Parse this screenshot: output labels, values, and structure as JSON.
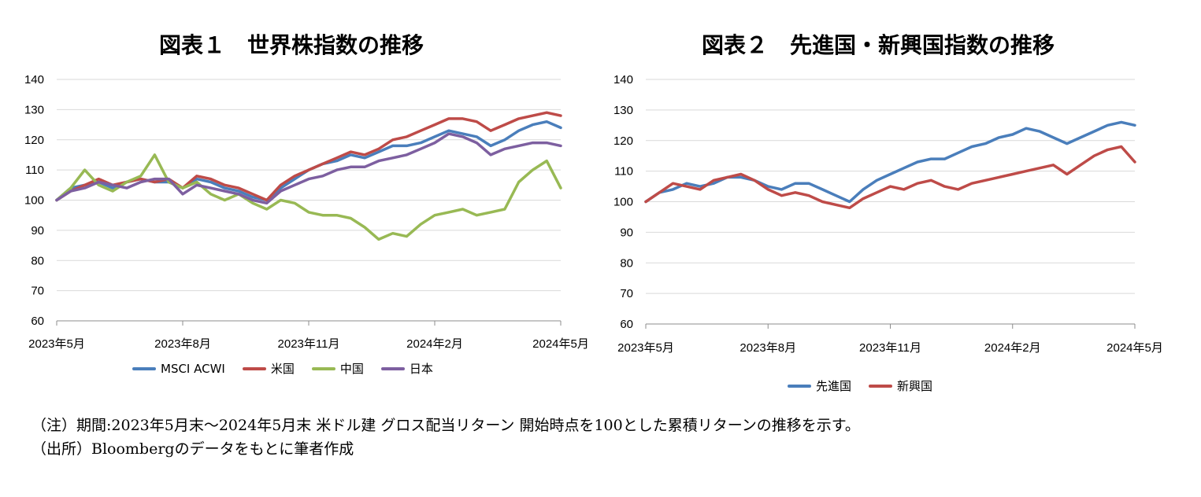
{
  "notes": {
    "line1": "（注）期間:2023年5月末～2024年5月末 米ドル建 グロス配当リターン 開始時点を100とした累積リターンの推移を示す。",
    "line2": "（出所）Bloombergのデータをもとに筆者作成"
  },
  "chart_data": [
    {
      "type": "line",
      "title": "図表１　世界株指数の推移",
      "ylim": [
        60,
        140
      ],
      "yticks": [
        "60",
        "70",
        "80",
        "90",
        "100",
        "110",
        "120",
        "130",
        "140"
      ],
      "xticks": [
        "2023年5月",
        "2023年8月",
        "2023年11月",
        "2024年2月",
        "2024年5月"
      ],
      "grid": true,
      "legend_position": "bottom",
      "series": [
        {
          "name": "MSCI ACWI",
          "color": "#4a7ebb",
          "points": [
            [
              0,
              100
            ],
            [
              3,
              104
            ],
            [
              6,
              105
            ],
            [
              9,
              106
            ],
            [
              12,
              104
            ],
            [
              15,
              106
            ],
            [
              18,
              107
            ],
            [
              21,
              106
            ],
            [
              24,
              106
            ],
            [
              27,
              104
            ],
            [
              30,
              107
            ],
            [
              33,
              106
            ],
            [
              36,
              104
            ],
            [
              39,
              103
            ],
            [
              42,
              101
            ],
            [
              45,
              100
            ],
            [
              48,
              104
            ],
            [
              51,
              107
            ],
            [
              54,
              110
            ],
            [
              57,
              112
            ],
            [
              60,
              113
            ],
            [
              63,
              115
            ],
            [
              66,
              114
            ],
            [
              69,
              116
            ],
            [
              72,
              118
            ],
            [
              75,
              118
            ],
            [
              78,
              119
            ],
            [
              81,
              121
            ],
            [
              84,
              123
            ],
            [
              87,
              122
            ],
            [
              90,
              121
            ],
            [
              93,
              118
            ],
            [
              96,
              120
            ],
            [
              99,
              123
            ],
            [
              102,
              125
            ],
            [
              105,
              126
            ],
            [
              108,
              124
            ]
          ]
        },
        {
          "name": "米国",
          "color": "#be4b48",
          "points": [
            [
              0,
              100
            ],
            [
              3,
              103
            ],
            [
              6,
              105
            ],
            [
              9,
              107
            ],
            [
              12,
              105
            ],
            [
              15,
              106
            ],
            [
              18,
              107
            ],
            [
              21,
              106
            ],
            [
              24,
              107
            ],
            [
              27,
              104
            ],
            [
              30,
              108
            ],
            [
              33,
              107
            ],
            [
              36,
              105
            ],
            [
              39,
              104
            ],
            [
              42,
              102
            ],
            [
              45,
              100
            ],
            [
              48,
              105
            ],
            [
              51,
              108
            ],
            [
              54,
              110
            ],
            [
              57,
              112
            ],
            [
              60,
              114
            ],
            [
              63,
              116
            ],
            [
              66,
              115
            ],
            [
              69,
              117
            ],
            [
              72,
              120
            ],
            [
              75,
              121
            ],
            [
              78,
              123
            ],
            [
              81,
              125
            ],
            [
              84,
              127
            ],
            [
              87,
              127
            ],
            [
              90,
              126
            ],
            [
              93,
              123
            ],
            [
              96,
              125
            ],
            [
              99,
              127
            ],
            [
              102,
              128
            ],
            [
              105,
              129
            ],
            [
              108,
              128
            ]
          ]
        },
        {
          "name": "中国",
          "color": "#98b954",
          "points": [
            [
              0,
              100
            ],
            [
              3,
              104
            ],
            [
              6,
              110
            ],
            [
              9,
              105
            ],
            [
              12,
              103
            ],
            [
              15,
              106
            ],
            [
              18,
              108
            ],
            [
              21,
              115
            ],
            [
              24,
              106
            ],
            [
              27,
              104
            ],
            [
              30,
              106
            ],
            [
              33,
              102
            ],
            [
              36,
              100
            ],
            [
              39,
              102
            ],
            [
              42,
              99
            ],
            [
              45,
              97
            ],
            [
              48,
              100
            ],
            [
              51,
              99
            ],
            [
              54,
              96
            ],
            [
              57,
              95
            ],
            [
              60,
              95
            ],
            [
              63,
              94
            ],
            [
              66,
              91
            ],
            [
              69,
              87
            ],
            [
              72,
              89
            ],
            [
              75,
              88
            ],
            [
              78,
              92
            ],
            [
              81,
              95
            ],
            [
              84,
              96
            ],
            [
              87,
              97
            ],
            [
              90,
              95
            ],
            [
              93,
              96
            ],
            [
              96,
              97
            ],
            [
              99,
              106
            ],
            [
              102,
              110
            ],
            [
              105,
              113
            ],
            [
              108,
              104
            ]
          ]
        },
        {
          "name": "日本",
          "color": "#7d5fa0",
          "points": [
            [
              0,
              100
            ],
            [
              3,
              103
            ],
            [
              6,
              104
            ],
            [
              9,
              106
            ],
            [
              12,
              105
            ],
            [
              15,
              104
            ],
            [
              18,
              106
            ],
            [
              21,
              107
            ],
            [
              24,
              107
            ],
            [
              27,
              102
            ],
            [
              30,
              105
            ],
            [
              33,
              104
            ],
            [
              36,
              103
            ],
            [
              39,
              102
            ],
            [
              42,
              100
            ],
            [
              45,
              99
            ],
            [
              48,
              103
            ],
            [
              51,
              105
            ],
            [
              54,
              107
            ],
            [
              57,
              108
            ],
            [
              60,
              110
            ],
            [
              63,
              111
            ],
            [
              66,
              111
            ],
            [
              69,
              113
            ],
            [
              72,
              114
            ],
            [
              75,
              115
            ],
            [
              78,
              117
            ],
            [
              81,
              119
            ],
            [
              84,
              122
            ],
            [
              87,
              121
            ],
            [
              90,
              119
            ],
            [
              93,
              115
            ],
            [
              96,
              117
            ],
            [
              99,
              118
            ],
            [
              102,
              119
            ],
            [
              105,
              119
            ],
            [
              108,
              118
            ]
          ]
        }
      ]
    },
    {
      "type": "line",
      "title": "図表２　先進国・新興国指数の推移",
      "ylim": [
        60,
        140
      ],
      "yticks": [
        "60",
        "70",
        "80",
        "90",
        "100",
        "110",
        "120",
        "130",
        "140"
      ],
      "xticks": [
        "2023年5月",
        "2023年8月",
        "2023年11月",
        "2024年2月",
        "2024年5月"
      ],
      "grid": true,
      "legend_position": "bottom",
      "series": [
        {
          "name": "先進国",
          "color": "#4a7ebb",
          "points": [
            [
              0,
              100
            ],
            [
              3,
              103
            ],
            [
              6,
              104
            ],
            [
              9,
              106
            ],
            [
              12,
              105
            ],
            [
              15,
              106
            ],
            [
              18,
              108
            ],
            [
              21,
              108
            ],
            [
              24,
              107
            ],
            [
              27,
              105
            ],
            [
              30,
              104
            ],
            [
              33,
              106
            ],
            [
              36,
              106
            ],
            [
              39,
              104
            ],
            [
              42,
              102
            ],
            [
              45,
              100
            ],
            [
              48,
              104
            ],
            [
              51,
              107
            ],
            [
              54,
              109
            ],
            [
              57,
              111
            ],
            [
              60,
              113
            ],
            [
              63,
              114
            ],
            [
              66,
              114
            ],
            [
              69,
              116
            ],
            [
              72,
              118
            ],
            [
              75,
              119
            ],
            [
              78,
              121
            ],
            [
              81,
              122
            ],
            [
              84,
              124
            ],
            [
              87,
              123
            ],
            [
              90,
              121
            ],
            [
              93,
              119
            ],
            [
              96,
              121
            ],
            [
              99,
              123
            ],
            [
              102,
              125
            ],
            [
              105,
              126
            ],
            [
              108,
              125
            ]
          ]
        },
        {
          "name": "新興国",
          "color": "#be4b48",
          "points": [
            [
              0,
              100
            ],
            [
              3,
              103
            ],
            [
              6,
              106
            ],
            [
              9,
              105
            ],
            [
              12,
              104
            ],
            [
              15,
              107
            ],
            [
              18,
              108
            ],
            [
              21,
              109
            ],
            [
              24,
              107
            ],
            [
              27,
              104
            ],
            [
              30,
              102
            ],
            [
              33,
              103
            ],
            [
              36,
              102
            ],
            [
              39,
              100
            ],
            [
              42,
              99
            ],
            [
              45,
              98
            ],
            [
              48,
              101
            ],
            [
              51,
              103
            ],
            [
              54,
              105
            ],
            [
              57,
              104
            ],
            [
              60,
              106
            ],
            [
              63,
              107
            ],
            [
              66,
              105
            ],
            [
              69,
              104
            ],
            [
              72,
              106
            ],
            [
              75,
              107
            ],
            [
              78,
              108
            ],
            [
              81,
              109
            ],
            [
              84,
              110
            ],
            [
              87,
              111
            ],
            [
              90,
              112
            ],
            [
              93,
              109
            ],
            [
              96,
              112
            ],
            [
              99,
              115
            ],
            [
              102,
              117
            ],
            [
              105,
              118
            ],
            [
              108,
              113
            ]
          ]
        }
      ]
    }
  ]
}
